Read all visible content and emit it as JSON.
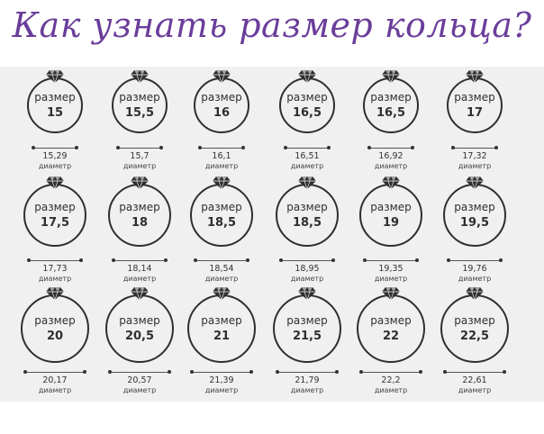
{
  "title": "Как узнать размер кольца?",
  "size_word": "размер",
  "diameter_word": "диаметр",
  "colors": {
    "title": "#6a3d9a",
    "ring": "#2f2f2f",
    "gem": "#2f2f2f",
    "panel": "#f0f0f0"
  },
  "icon": "diamond-icon",
  "rings": [
    {
      "size": "15",
      "diameter": "15,29"
    },
    {
      "size": "15,5",
      "diameter": "15,7"
    },
    {
      "size": "16",
      "diameter": "16,1"
    },
    {
      "size": "16,5",
      "diameter": "16,51"
    },
    {
      "size": "16,5",
      "diameter": "16,92"
    },
    {
      "size": "17",
      "diameter": "17,32"
    },
    {
      "size": "17,5",
      "diameter": "17,73"
    },
    {
      "size": "18",
      "diameter": "18,14"
    },
    {
      "size": "18,5",
      "diameter": "18,54"
    },
    {
      "size": "18,5",
      "diameter": "18,95"
    },
    {
      "size": "19",
      "diameter": "19,35"
    },
    {
      "size": "19,5",
      "diameter": "19,76"
    },
    {
      "size": "20",
      "diameter": "20,17"
    },
    {
      "size": "20,5",
      "diameter": "20,57"
    },
    {
      "size": "21",
      "diameter": "21,39"
    },
    {
      "size": "21,5",
      "diameter": "21,79"
    },
    {
      "size": "22",
      "diameter": "22,2"
    },
    {
      "size": "22,5",
      "diameter": "22,61"
    }
  ]
}
